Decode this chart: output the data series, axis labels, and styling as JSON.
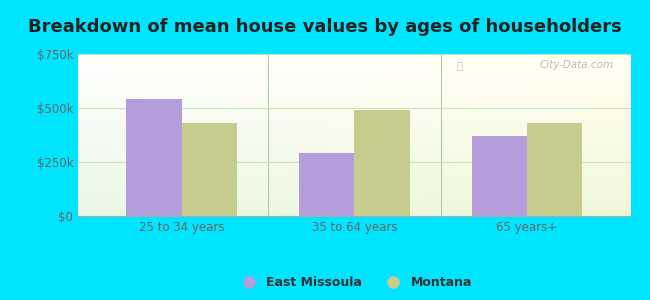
{
  "title": "Breakdown of mean house values by ages of householders",
  "categories": [
    "25 to 34 years",
    "35 to 64 years",
    "65 years+"
  ],
  "east_missoula": [
    540000,
    290000,
    370000
  ],
  "montana": [
    430000,
    490000,
    430000
  ],
  "ylim": [
    0,
    750000
  ],
  "yticks": [
    0,
    250000,
    500000,
    750000
  ],
  "ytick_labels": [
    "$0",
    "$250k",
    "$500k",
    "$750k"
  ],
  "bar_color_em": "#b39ddb",
  "bar_color_mt": "#c5cc8e",
  "background_outer": "#00e5ff",
  "legend_em": "East Missoula",
  "legend_mt": "Montana",
  "title_fontsize": 13,
  "bar_width": 0.32,
  "watermark": "City-Data.com",
  "tick_label_color": "#666666",
  "grid_color": "#ddeecc",
  "group_separation_color": "#aaccaa"
}
